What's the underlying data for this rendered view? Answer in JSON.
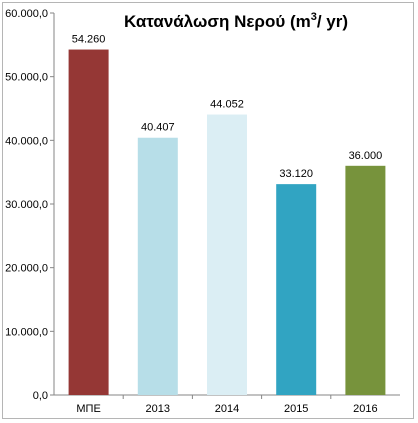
{
  "chart_data": {
    "type": "bar",
    "title": "Κατανάλωση Νερού (m³/ yr)",
    "title_parts": {
      "pre": "Κατανάλωση Νερού (m",
      "sup": "3",
      "post": "/ yr)"
    },
    "categories": [
      "ΜΠΕ",
      "2013",
      "2014",
      "2015",
      "2016"
    ],
    "values": [
      54260,
      40407,
      44052,
      33120,
      36000
    ],
    "value_labels": [
      "54.260",
      "40.407",
      "44.052",
      "33.120",
      "36.000"
    ],
    "bar_colors": [
      "#953735",
      "#b7dee8",
      "#dbeef4",
      "#31a4c2",
      "#77933c"
    ],
    "ylim": [
      0,
      60000
    ],
    "yticks": [
      0,
      10000,
      20000,
      30000,
      40000,
      50000,
      60000
    ],
    "ytick_labels": [
      "0,0",
      "10.000,0",
      "20.000,0",
      "30.000,0",
      "40.000,0",
      "50.000,0",
      "60.000,0"
    ],
    "xlabel": "",
    "ylabel": "",
    "grid": false,
    "legend": "none"
  }
}
